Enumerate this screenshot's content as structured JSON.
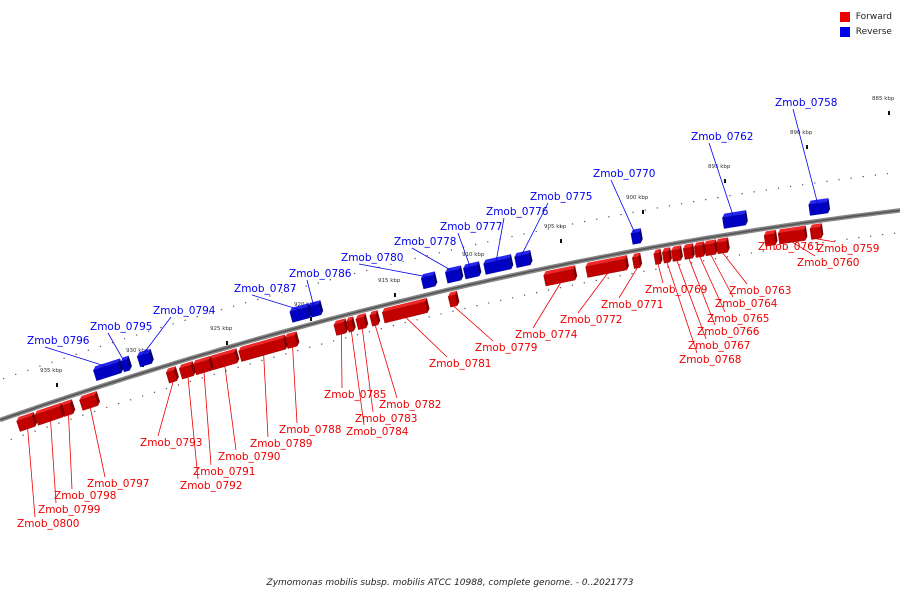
{
  "legend": {
    "forward_label": "Forward",
    "reverse_label": "Reverse",
    "forward_color": "#ee0000",
    "reverse_color": "#0000ee"
  },
  "caption": "Zymomonas mobilis subsp. mobilis ATCC 10988, complete genome. - 0..2021773",
  "ticks": [
    "885 kbp",
    "890 kbp",
    "895 kbp",
    "900 kbp",
    "905 kbp",
    "910 kbp",
    "915 kbp",
    "920 kbp",
    "925 kbp",
    "930 kbp",
    "935 kbp"
  ],
  "genes": [
    {
      "name": "Zmob_0758",
      "strand": "reverse"
    },
    {
      "name": "Zmob_0759",
      "strand": "forward"
    },
    {
      "name": "Zmob_0760",
      "strand": "forward"
    },
    {
      "name": "Zmob_0761",
      "strand": "forward"
    },
    {
      "name": "Zmob_0762",
      "strand": "reverse"
    },
    {
      "name": "Zmob_0763",
      "strand": "forward"
    },
    {
      "name": "Zmob_0764",
      "strand": "forward"
    },
    {
      "name": "Zmob_0765",
      "strand": "forward"
    },
    {
      "name": "Zmob_0766",
      "strand": "forward"
    },
    {
      "name": "Zmob_0767",
      "strand": "forward"
    },
    {
      "name": "Zmob_0768",
      "strand": "forward"
    },
    {
      "name": "Zmob_0769",
      "strand": "forward"
    },
    {
      "name": "Zmob_0770",
      "strand": "reverse"
    },
    {
      "name": "Zmob_0771",
      "strand": "forward"
    },
    {
      "name": "Zmob_0772",
      "strand": "forward"
    },
    {
      "name": "Zmob_0774",
      "strand": "forward"
    },
    {
      "name": "Zmob_0775",
      "strand": "reverse"
    },
    {
      "name": "Zmob_0776",
      "strand": "reverse"
    },
    {
      "name": "Zmob_0777",
      "strand": "reverse"
    },
    {
      "name": "Zmob_0778",
      "strand": "reverse"
    },
    {
      "name": "Zmob_0779",
      "strand": "forward"
    },
    {
      "name": "Zmob_0780",
      "strand": "reverse"
    },
    {
      "name": "Zmob_0781",
      "strand": "forward"
    },
    {
      "name": "Zmob_0782",
      "strand": "forward"
    },
    {
      "name": "Zmob_0783",
      "strand": "forward"
    },
    {
      "name": "Zmob_0784",
      "strand": "forward"
    },
    {
      "name": "Zmob_0785",
      "strand": "forward"
    },
    {
      "name": "Zmob_0786",
      "strand": "reverse"
    },
    {
      "name": "Zmob_0787",
      "strand": "reverse"
    },
    {
      "name": "Zmob_0788",
      "strand": "forward"
    },
    {
      "name": "Zmob_0789",
      "strand": "forward"
    },
    {
      "name": "Zmob_0790",
      "strand": "forward"
    },
    {
      "name": "Zmob_0791",
      "strand": "forward"
    },
    {
      "name": "Zmob_0792",
      "strand": "forward"
    },
    {
      "name": "Zmob_0793",
      "strand": "forward"
    },
    {
      "name": "Zmob_0794",
      "strand": "reverse"
    },
    {
      "name": "Zmob_0795",
      "strand": "reverse"
    },
    {
      "name": "Zmob_0796",
      "strand": "reverse"
    },
    {
      "name": "Zmob_0797",
      "strand": "forward"
    },
    {
      "name": "Zmob_0798",
      "strand": "forward"
    },
    {
      "name": "Zmob_0799",
      "strand": "forward"
    },
    {
      "name": "Zmob_0800",
      "strand": "forward"
    }
  ]
}
